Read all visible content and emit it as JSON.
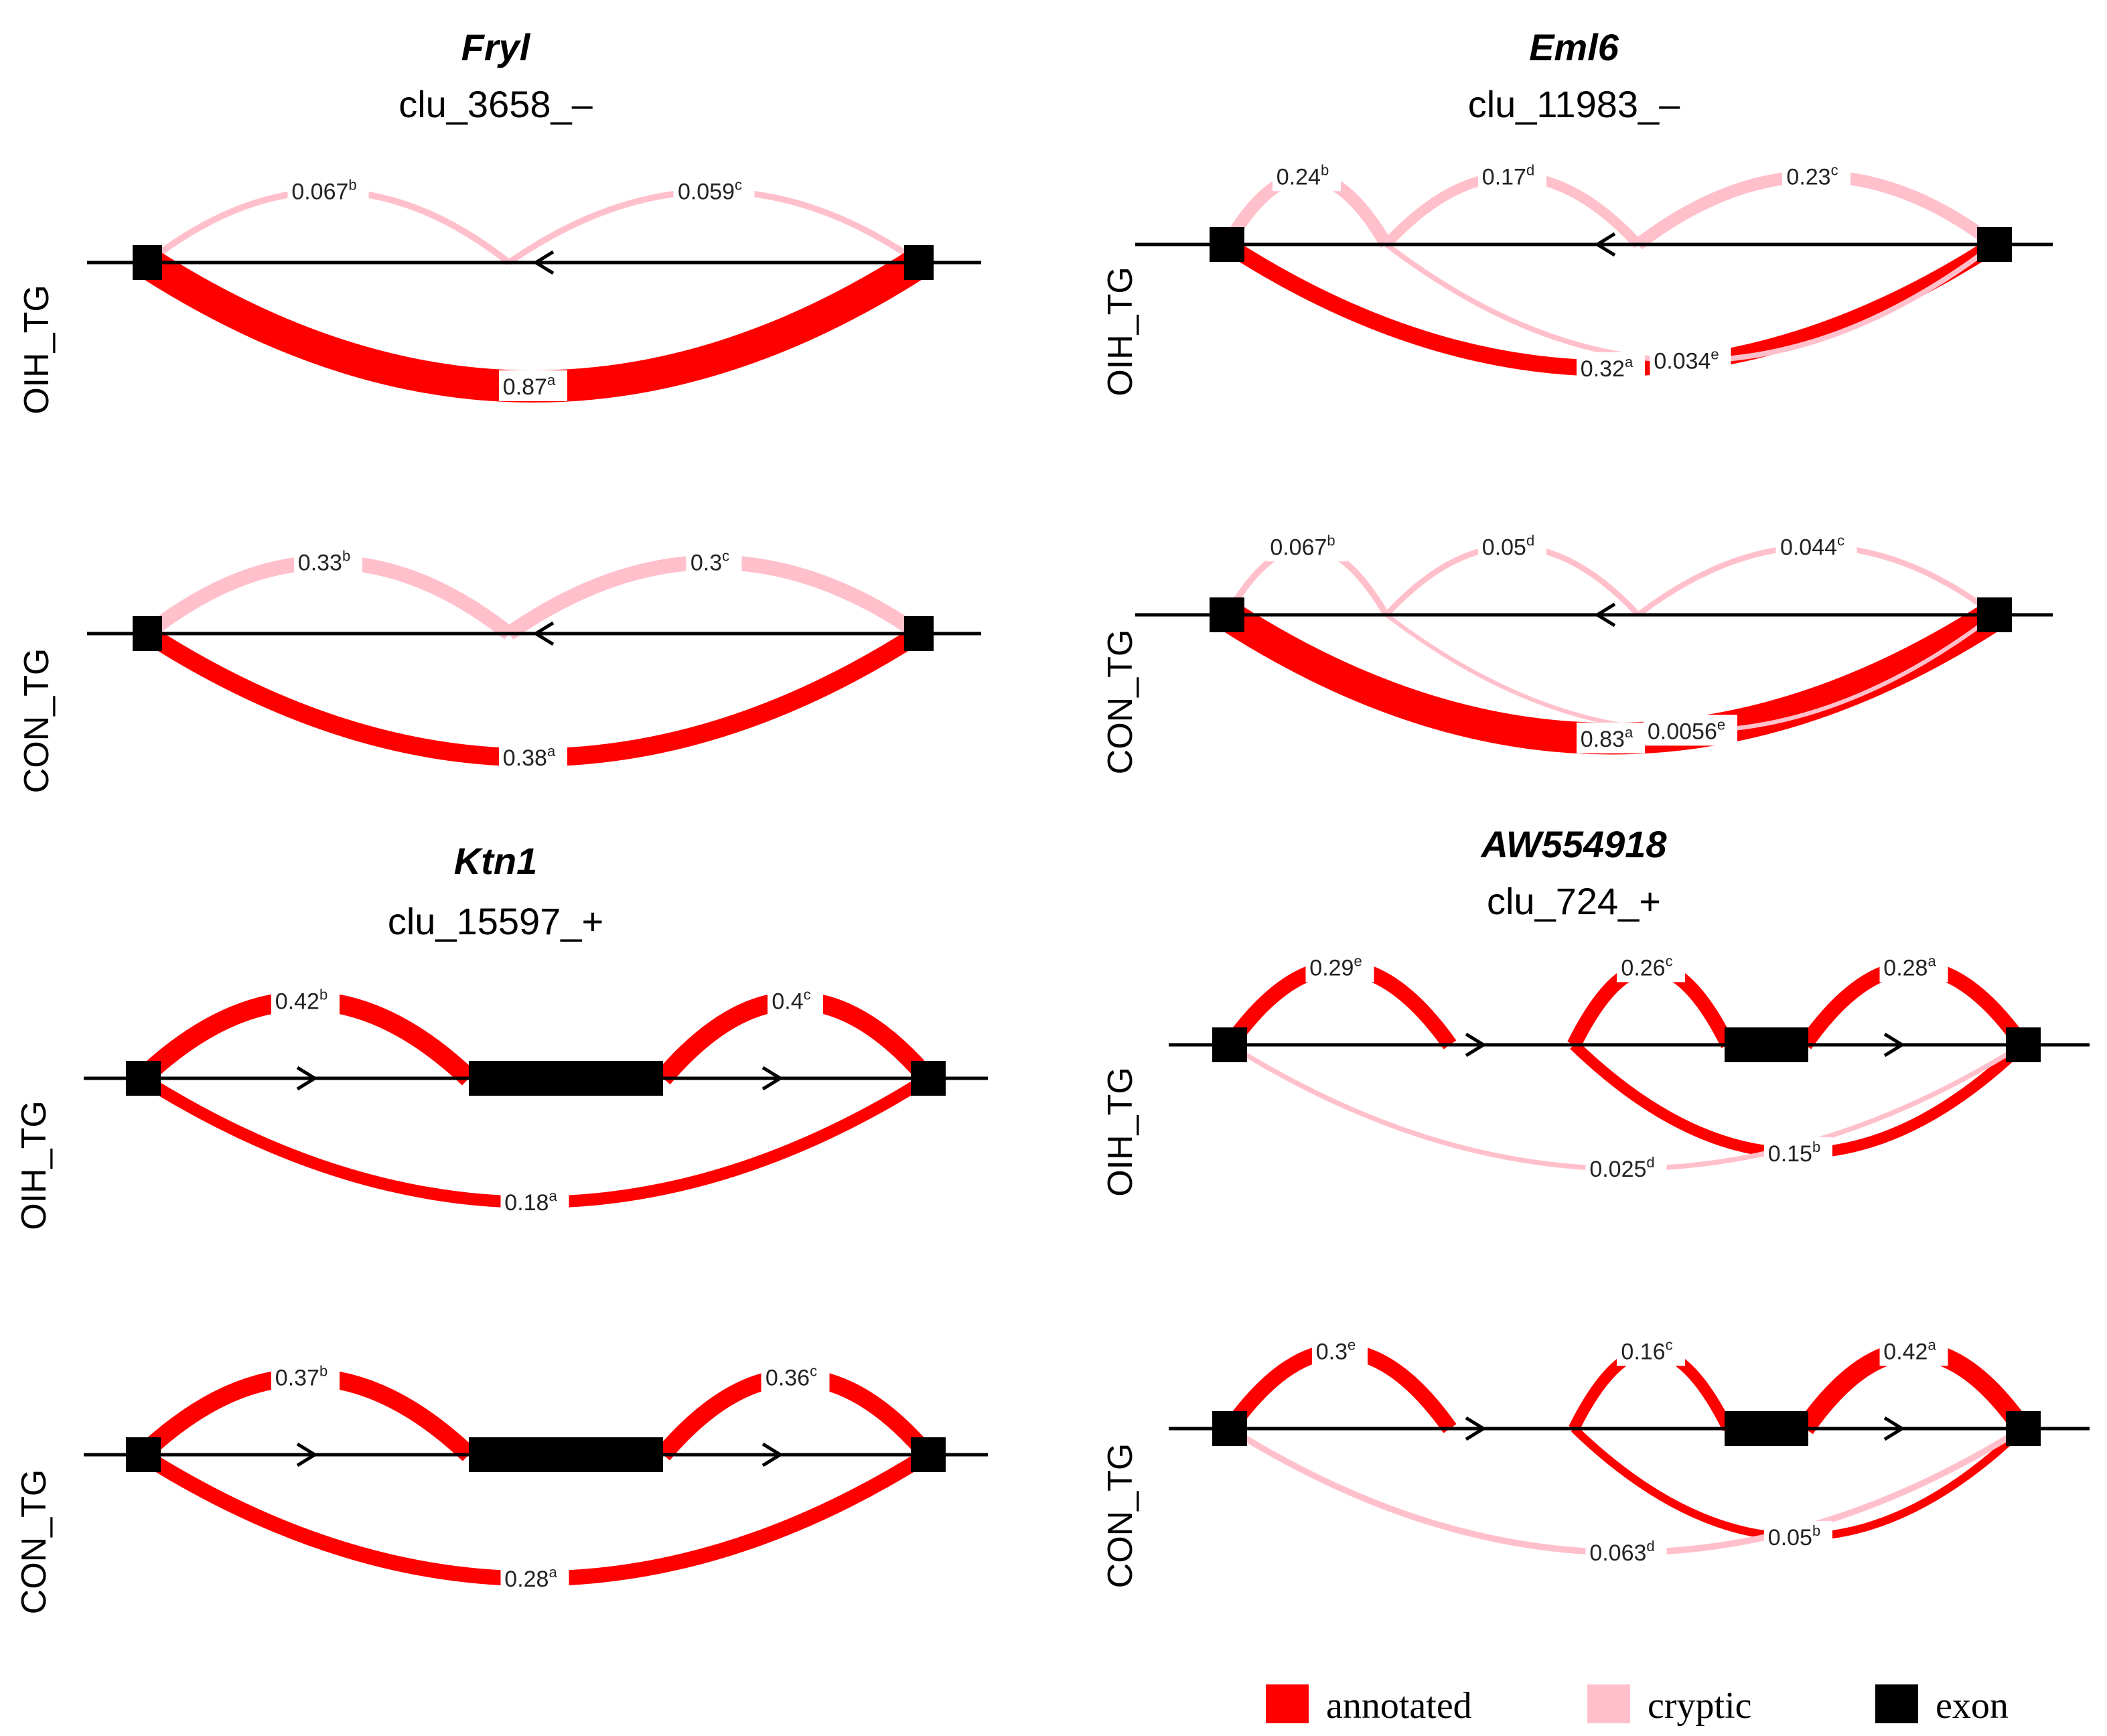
{
  "colors": {
    "annotated": "#ff0000",
    "cryptic": "#ffc0cb",
    "exon": "#000000",
    "line": "#000000"
  },
  "legend": [
    {
      "key": "annotated",
      "label": "annotated"
    },
    {
      "key": "cryptic",
      "label": "cryptic"
    },
    {
      "key": "exon",
      "label": "exon"
    }
  ],
  "panels": [
    {
      "id": "fryl",
      "gene": "Fryl",
      "cluster": "clu_3658_–",
      "strand": "-",
      "tracks": [
        {
          "label": "OIH_TG",
          "junctions": [
            {
              "from": 0,
              "to": 1,
              "side": "above",
              "type": "cryptic",
              "value": "0.067",
              "letter": "b"
            },
            {
              "from": 1,
              "to": 2,
              "side": "above",
              "type": "cryptic",
              "value": "0.059",
              "letter": "c"
            },
            {
              "from": 0,
              "to": 2,
              "side": "below",
              "type": "annotated",
              "value": "0.87",
              "letter": "a"
            }
          ]
        },
        {
          "label": "CON_TG",
          "junctions": [
            {
              "from": 0,
              "to": 1,
              "side": "above",
              "type": "cryptic",
              "value": "0.33",
              "letter": "b"
            },
            {
              "from": 1,
              "to": 2,
              "side": "above",
              "type": "cryptic",
              "value": "0.3",
              "letter": "c"
            },
            {
              "from": 0,
              "to": 2,
              "side": "below",
              "type": "annotated",
              "value": "0.38",
              "letter": "a"
            }
          ]
        }
      ]
    },
    {
      "id": "eml6",
      "gene": "Eml6",
      "cluster": "clu_11983_–",
      "strand": "-",
      "tracks": [
        {
          "label": "OIH_TG",
          "junctions": [
            {
              "from": 0,
              "to": 1,
              "side": "above",
              "type": "cryptic",
              "value": "0.24",
              "letter": "b"
            },
            {
              "from": 1,
              "to": 2,
              "side": "above",
              "type": "cryptic",
              "value": "0.17",
              "letter": "d"
            },
            {
              "from": 2,
              "to": 3,
              "side": "above",
              "type": "cryptic",
              "value": "0.23",
              "letter": "c"
            },
            {
              "from": 0,
              "to": 3,
              "side": "below",
              "type": "annotated",
              "value": "0.32",
              "letter": "a"
            },
            {
              "from": 1,
              "to": 3,
              "side": "below",
              "type": "cryptic",
              "value": "0.034",
              "letter": "e"
            }
          ]
        },
        {
          "label": "CON_TG",
          "junctions": [
            {
              "from": 0,
              "to": 1,
              "side": "above",
              "type": "cryptic",
              "value": "0.067",
              "letter": "b"
            },
            {
              "from": 1,
              "to": 2,
              "side": "above",
              "type": "cryptic",
              "value": "0.05",
              "letter": "d"
            },
            {
              "from": 2,
              "to": 3,
              "side": "above",
              "type": "cryptic",
              "value": "0.044",
              "letter": "c"
            },
            {
              "from": 0,
              "to": 3,
              "side": "below",
              "type": "annotated",
              "value": "0.83",
              "letter": "a"
            },
            {
              "from": 1,
              "to": 3,
              "side": "below",
              "type": "cryptic",
              "value": "0.0056",
              "letter": "e"
            }
          ]
        }
      ]
    },
    {
      "id": "ktn1",
      "gene": "Ktn1",
      "cluster": "clu_15597_+",
      "strand": "+",
      "tracks": [
        {
          "label": "OIH_TG",
          "junctions": [
            {
              "from": 0,
              "to": 1,
              "side": "above",
              "type": "annotated",
              "value": "0.42",
              "letter": "b"
            },
            {
              "from": 2,
              "to": 3,
              "side": "above",
              "type": "annotated",
              "value": "0.4",
              "letter": "c"
            },
            {
              "from": 0,
              "to": 3,
              "side": "below",
              "type": "annotated",
              "value": "0.18",
              "letter": "a"
            }
          ]
        },
        {
          "label": "CON_TG",
          "junctions": [
            {
              "from": 0,
              "to": 1,
              "side": "above",
              "type": "annotated",
              "value": "0.37",
              "letter": "b"
            },
            {
              "from": 2,
              "to": 3,
              "side": "above",
              "type": "annotated",
              "value": "0.36",
              "letter": "c"
            },
            {
              "from": 0,
              "to": 3,
              "side": "below",
              "type": "annotated",
              "value": "0.28",
              "letter": "a"
            }
          ]
        }
      ]
    },
    {
      "id": "aw554918",
      "gene": "AW554918",
      "cluster": "clu_724_+",
      "strand": "+",
      "tracks": [
        {
          "label": "OIH_TG",
          "junctions": [
            {
              "from": 0,
              "to": 1,
              "side": "above",
              "type": "annotated",
              "value": "0.29",
              "letter": "e"
            },
            {
              "from": 2,
              "to": 3,
              "side": "above",
              "type": "annotated",
              "value": "0.26",
              "letter": "c"
            },
            {
              "from": 4,
              "to": 5,
              "side": "above",
              "type": "annotated",
              "value": "0.28",
              "letter": "a"
            },
            {
              "from": 2,
              "to": 5,
              "side": "below",
              "type": "annotated",
              "value": "0.15",
              "letter": "b"
            },
            {
              "from": 0,
              "to": 5,
              "side": "below",
              "type": "cryptic",
              "value": "0.025",
              "letter": "d"
            }
          ]
        },
        {
          "label": "CON_TG",
          "junctions": [
            {
              "from": 0,
              "to": 1,
              "side": "above",
              "type": "annotated",
              "value": "0.3",
              "letter": "e"
            },
            {
              "from": 2,
              "to": 3,
              "side": "above",
              "type": "annotated",
              "value": "0.16",
              "letter": "c"
            },
            {
              "from": 4,
              "to": 5,
              "side": "above",
              "type": "annotated",
              "value": "0.42",
              "letter": "a"
            },
            {
              "from": 2,
              "to": 5,
              "side": "below",
              "type": "annotated",
              "value": "0.05",
              "letter": "b"
            },
            {
              "from": 0,
              "to": 5,
              "side": "below",
              "type": "cryptic",
              "value": "0.063",
              "letter": "d"
            }
          ]
        }
      ]
    }
  ]
}
